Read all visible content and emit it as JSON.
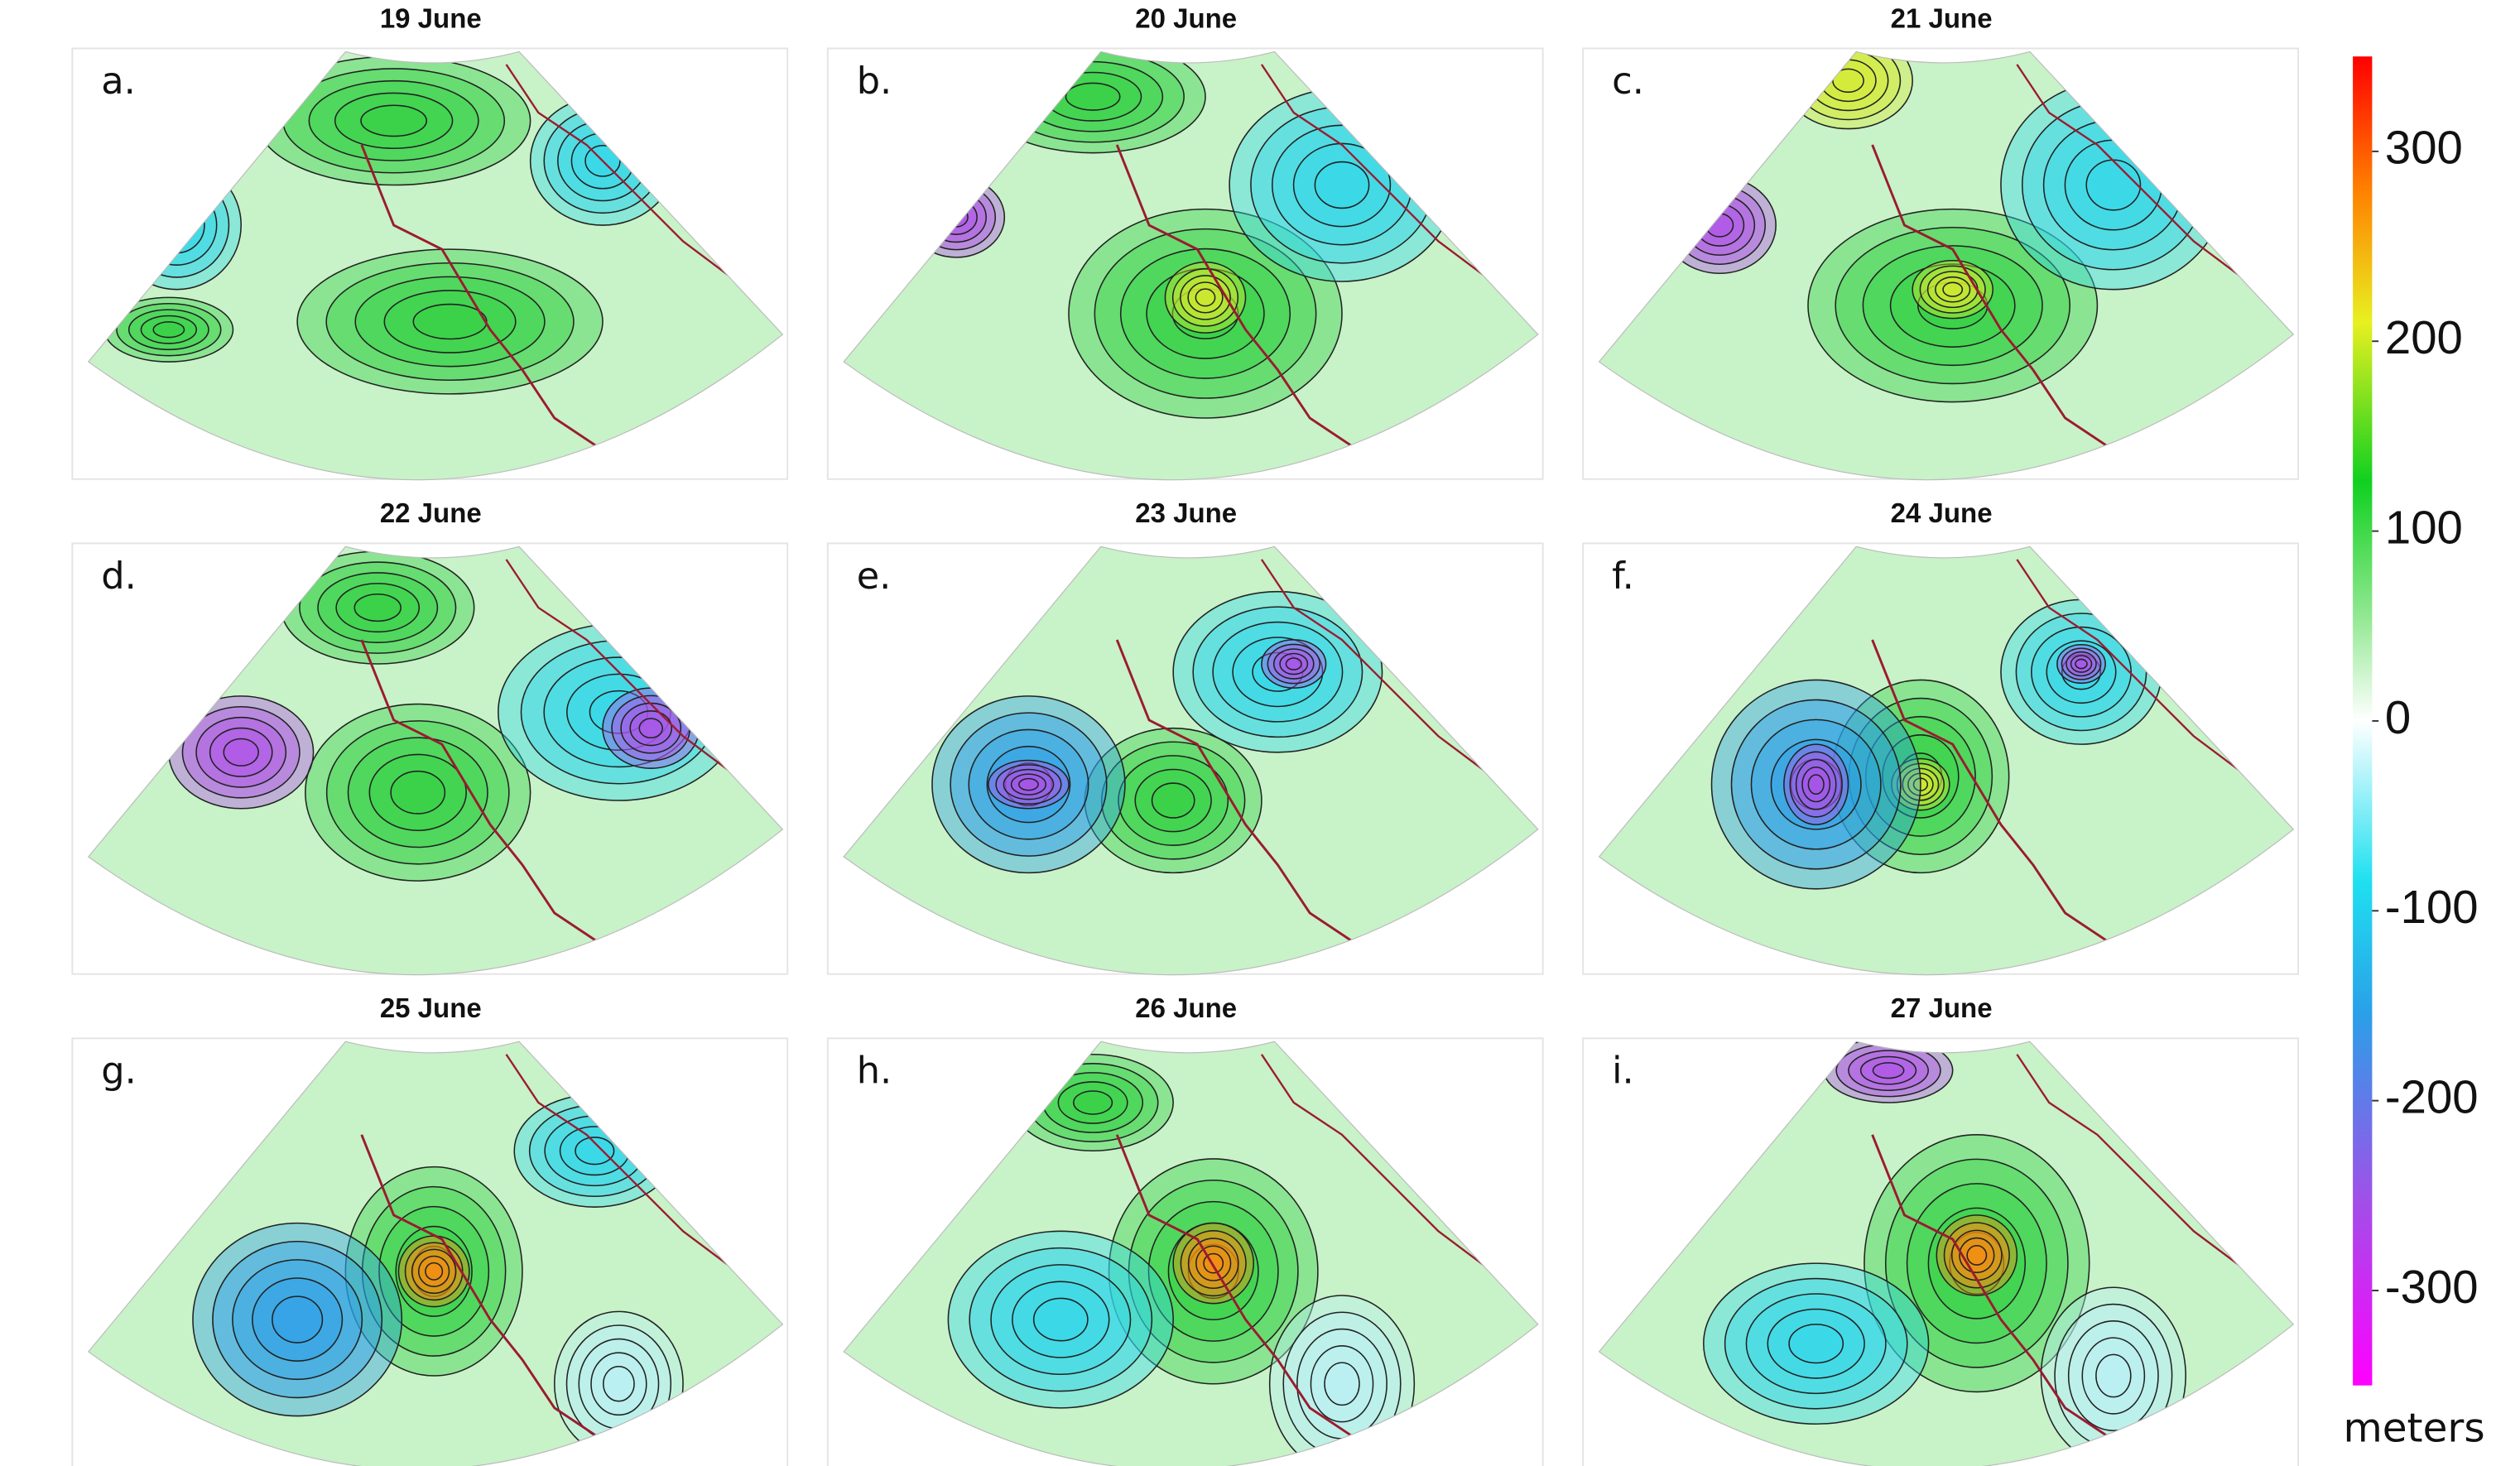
{
  "panels": [
    {
      "label": "a.",
      "date": "19 June"
    },
    {
      "label": "b.",
      "date": "20 June"
    },
    {
      "label": "c.",
      "date": "21 June"
    },
    {
      "label": "d.",
      "date": "22 June"
    },
    {
      "label": "e.",
      "date": "23 June"
    },
    {
      "label": "f.",
      "date": "24 June"
    },
    {
      "label": "g.",
      "date": "25 June"
    },
    {
      "label": "h.",
      "date": "26 June"
    },
    {
      "label": "i.",
      "date": "27 June"
    }
  ],
  "colorbar": {
    "range": [
      -350,
      350
    ],
    "ticks": [
      300,
      200,
      100,
      0,
      -100,
      -200,
      -300
    ],
    "unit": "meters"
  }
}
